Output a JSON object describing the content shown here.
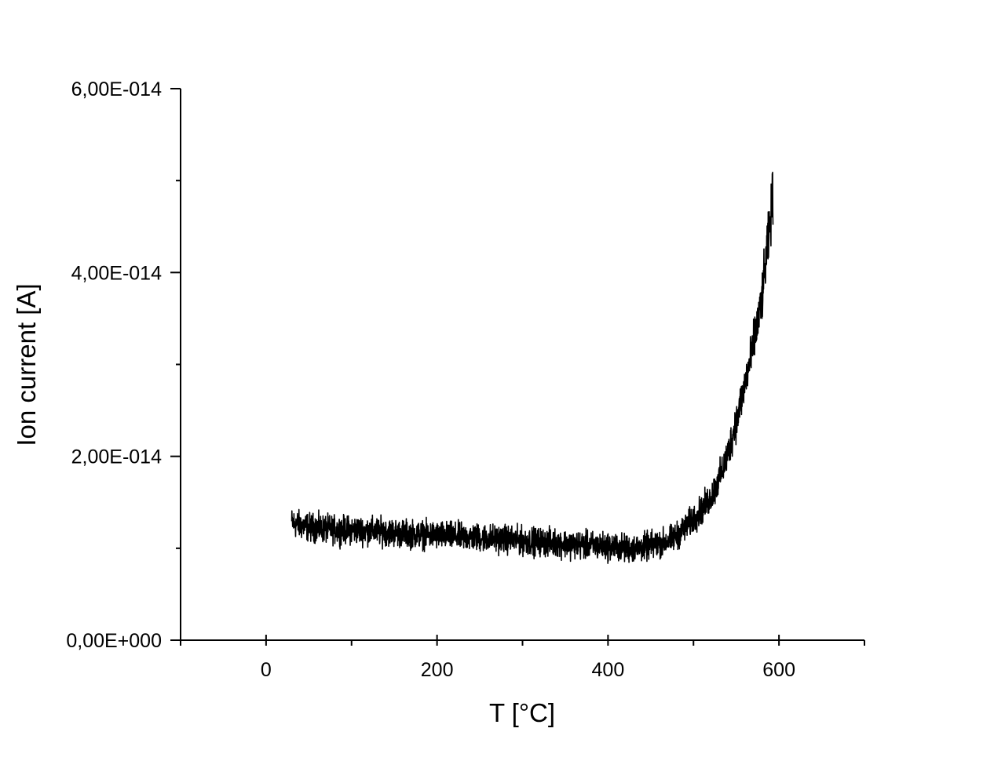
{
  "chart_data": {
    "type": "line",
    "title": "",
    "xlabel": "T [°C]",
    "ylabel": "Ion current [A]",
    "xlim": [
      -100,
      700
    ],
    "ylim": [
      0,
      6e-14
    ],
    "x_ticks": [
      {
        "value": 0,
        "label": "0"
      },
      {
        "value": 200,
        "label": "200"
      },
      {
        "value": 400,
        "label": "400"
      },
      {
        "value": 600,
        "label": "600"
      }
    ],
    "x_minor_ticks": [
      -100,
      100,
      300,
      500,
      700
    ],
    "y_ticks": [
      {
        "value": 0,
        "label": "0,00E+000"
      },
      {
        "value": 2e-14,
        "label": "2,00E-014"
      },
      {
        "value": 4e-14,
        "label": "4,00E-014"
      },
      {
        "value": 6e-14,
        "label": "6,00E-014"
      }
    ],
    "y_minor_ticks": [
      1e-14,
      3e-14,
      5e-14
    ],
    "grid": false,
    "legend": "none",
    "line_color": "#000000",
    "series": [
      {
        "x": [
          30,
          40,
          50,
          60,
          80,
          100,
          120,
          140,
          160,
          180,
          200,
          220,
          240,
          260,
          280,
          300,
          320,
          340,
          360,
          380,
          400,
          410,
          420,
          430,
          440,
          450,
          460,
          470,
          480,
          490,
          500,
          510,
          520,
          530,
          540,
          550,
          560,
          570,
          580,
          585,
          590,
          593
        ],
        "y": [
          1.28e-14,
          1.25e-14,
          1.23e-14,
          1.22e-14,
          1.2e-14,
          1.2e-14,
          1.19e-14,
          1.18e-14,
          1.16e-14,
          1.15e-14,
          1.14e-14,
          1.13e-14,
          1.12e-14,
          1.11e-14,
          1.1e-14,
          1.08e-14,
          1.07e-14,
          1.06e-14,
          1.04e-14,
          1.03e-14,
          1.02e-14,
          1.01e-14,
          1e-14,
          1e-14,
          1.01e-14,
          1.03e-14,
          1.05e-14,
          1.08e-14,
          1.13e-14,
          1.22e-14,
          1.32e-14,
          1.42e-14,
          1.55e-14,
          1.75e-14,
          2.02e-14,
          2.38e-14,
          2.78e-14,
          3.2e-14,
          3.7e-14,
          4.15e-14,
          4.55e-14,
          4.85e-14
        ],
        "noise_amplitude": 2.2e-15
      }
    ]
  }
}
